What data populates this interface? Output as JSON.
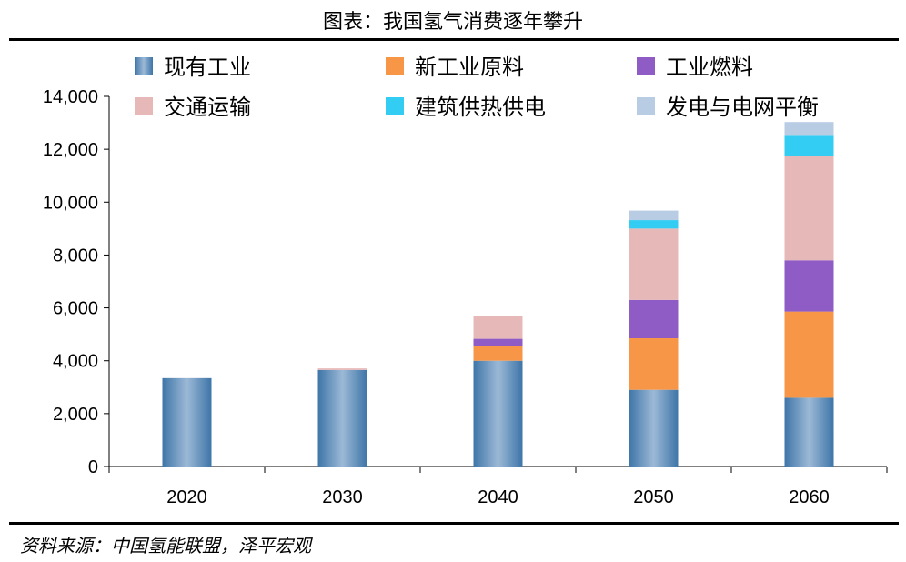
{
  "page_title": "图表：我国氢气消费逐年攀升",
  "source_note": "资料来源：中国氢能联盟，泽平宏观",
  "chart_data": {
    "type": "bar",
    "stacked": true,
    "title": "图表：我国氢气消费逐年攀升",
    "xlabel": "",
    "ylabel": "",
    "ylim": [
      0,
      14000
    ],
    "yticks": [
      0,
      2000,
      4000,
      6000,
      8000,
      10000,
      12000,
      14000
    ],
    "ytick_labels": [
      "0",
      "2,000",
      "4,000",
      "6,000",
      "8,000",
      "10,000",
      "12,000",
      "14,000"
    ],
    "categories": [
      "2020",
      "2030",
      "2040",
      "2050",
      "2060"
    ],
    "series": [
      {
        "name": "现有工业",
        "color": "#4F86B8",
        "values": [
          3342,
          3650,
          4000,
          2900,
          2600
        ]
      },
      {
        "name": "新工业原料",
        "color": "#F79646",
        "values": [
          0,
          0,
          550,
          1950,
          3260
        ]
      },
      {
        "name": "工业燃料",
        "color": "#8E5CC4",
        "values": [
          0,
          0,
          280,
          1450,
          1940
        ]
      },
      {
        "name": "交通运输",
        "color": "#E6B9B8",
        "values": [
          0,
          60,
          860,
          2700,
          3930
        ]
      },
      {
        "name": "建筑供热供电",
        "color": "#33CCF2",
        "values": [
          0,
          0,
          0,
          320,
          780
        ]
      },
      {
        "name": "发电与电网平衡",
        "color": "#B8CCE4",
        "values": [
          0,
          0,
          0,
          360,
          520
        ]
      }
    ],
    "legend_position": "top",
    "grid": false
  }
}
